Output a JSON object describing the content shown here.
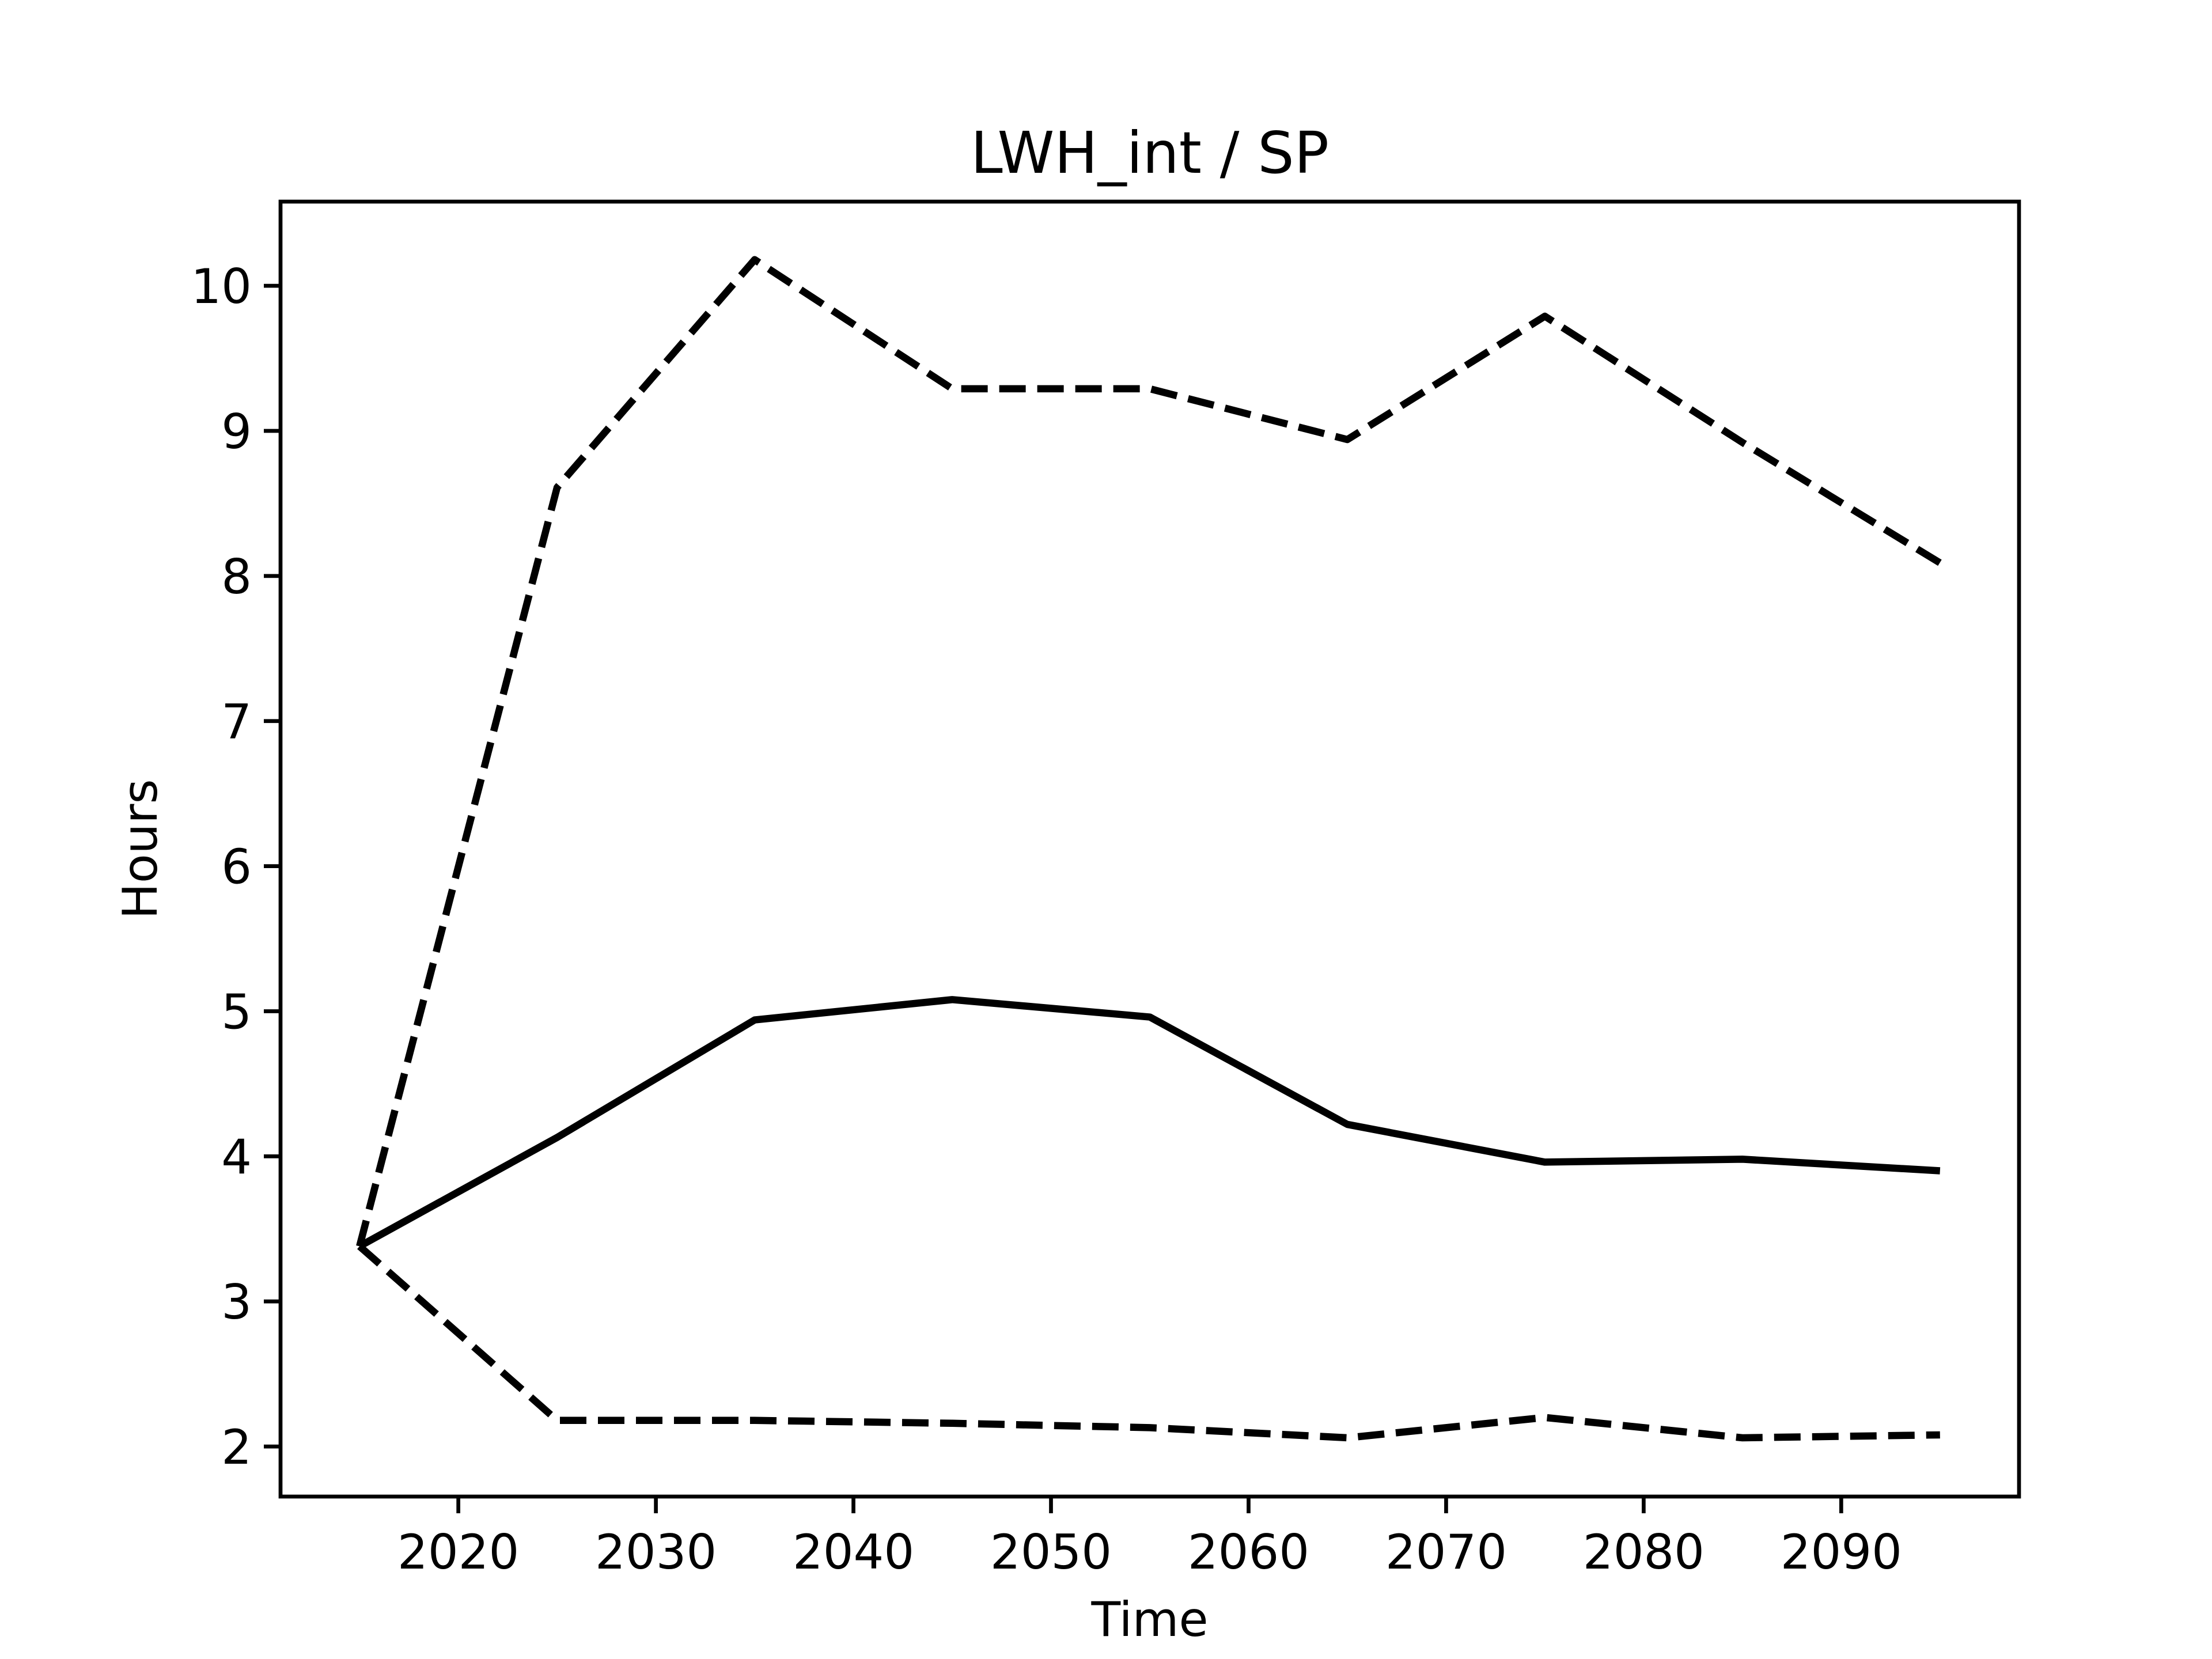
{
  "chart_data": {
    "type": "line",
    "title": "LWH_int / SP",
    "x_label": "Time",
    "y_label": "Hours",
    "x": [
      2015,
      2025,
      2035,
      2045,
      2055,
      2065,
      2075,
      2085,
      2095
    ],
    "series": [
      {
        "color": "#000000",
        "style": "solid",
        "values": [
          3.38,
          4.13,
          4.94,
          5.08,
          4.96,
          4.22,
          3.96,
          3.98,
          3.9
        ]
      },
      {
        "color": "#000000",
        "style": "dashed",
        "values": [
          3.38,
          8.61,
          10.18,
          9.29,
          9.29,
          8.94,
          9.79,
          8.92,
          8.09
        ]
      },
      {
        "color": "#000000",
        "style": "dashed",
        "values": [
          3.38,
          2.18,
          2.18,
          2.16,
          2.13,
          2.06,
          2.2,
          2.06,
          2.08
        ]
      }
    ],
    "xlim": [
      2011,
      2099
    ],
    "xticks": [
      2020,
      2030,
      2040,
      2050,
      2060,
      2070,
      2080,
      2090
    ],
    "ylim": [
      1.655,
      10.58
    ],
    "yticks": [
      2,
      3,
      4,
      5,
      6,
      7,
      8,
      9,
      10
    ],
    "grid": false
  }
}
